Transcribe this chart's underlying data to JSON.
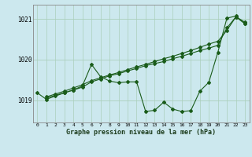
{
  "xlabel": "Graphe pression niveau de la mer (hPa)",
  "background_color": "#cce8ee",
  "grid_color": "#aacfbb",
  "line_color": "#1a5c1a",
  "xlim": [
    -0.5,
    23.5
  ],
  "ylim": [
    1018.45,
    1021.35
  ],
  "yticks": [
    1019,
    1020,
    1021
  ],
  "ytick_labels": [
    "1019",
    "1020",
    "1021"
  ],
  "xticks": [
    0,
    1,
    2,
    3,
    4,
    5,
    6,
    7,
    8,
    9,
    10,
    11,
    12,
    13,
    14,
    15,
    16,
    17,
    18,
    19,
    20,
    21,
    22,
    23
  ],
  "line1_x": [
    0,
    1,
    2,
    3,
    4,
    5,
    6,
    7,
    8,
    9,
    10,
    11,
    12,
    13,
    14,
    15,
    16,
    17,
    18,
    19,
    20,
    21,
    22,
    23
  ],
  "line1_y": [
    1019.18,
    1019.02,
    1019.1,
    1019.18,
    1019.25,
    1019.35,
    1019.88,
    1019.58,
    1019.47,
    1019.43,
    1019.45,
    1019.45,
    1018.72,
    1018.75,
    1018.95,
    1018.78,
    1018.72,
    1018.74,
    1019.22,
    1019.44,
    1020.18,
    1021.02,
    1021.07,
    1020.88
  ],
  "line2_x": [
    1,
    2,
    3,
    4,
    5,
    6,
    7,
    8,
    9,
    10,
    11,
    12,
    13,
    14,
    15,
    16,
    17,
    18,
    19,
    20,
    21,
    22,
    23
  ],
  "line2_y": [
    1019.05,
    1019.12,
    1019.18,
    1019.25,
    1019.32,
    1019.45,
    1019.52,
    1019.6,
    1019.65,
    1019.72,
    1019.78,
    1019.85,
    1019.9,
    1019.95,
    1020.02,
    1020.08,
    1020.15,
    1020.22,
    1020.28,
    1020.35,
    1020.78,
    1021.05,
    1020.88
  ],
  "line3_x": [
    1,
    2,
    3,
    4,
    5,
    6,
    7,
    8,
    9,
    10,
    11,
    12,
    13,
    14,
    15,
    16,
    17,
    18,
    19,
    20,
    21,
    22,
    23
  ],
  "line3_y": [
    1019.08,
    1019.15,
    1019.22,
    1019.3,
    1019.38,
    1019.48,
    1019.55,
    1019.62,
    1019.68,
    1019.75,
    1019.82,
    1019.88,
    1019.95,
    1020.02,
    1020.08,
    1020.15,
    1020.22,
    1020.3,
    1020.38,
    1020.45,
    1020.72,
    1021.05,
    1020.92
  ]
}
